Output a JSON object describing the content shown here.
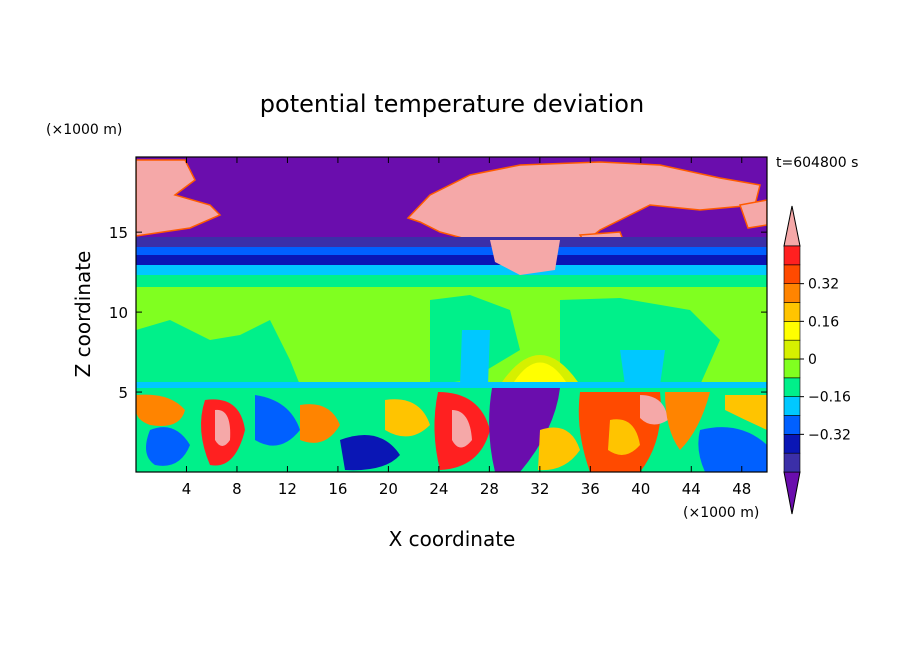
{
  "chart_data": {
    "type": "heatmap",
    "title": "potential temperature deviation",
    "time_label": "t=604800 s",
    "xlabel": "X coordinate",
    "ylabel": "Z coordinate",
    "x_unit": "(×1000 m)",
    "y_unit": "(×1000 m)",
    "xlim": [
      0,
      50
    ],
    "ylim": [
      0,
      19.7
    ],
    "x_ticks": [
      "4",
      "8",
      "12",
      "16",
      "20",
      "24",
      "28",
      "32",
      "36",
      "40",
      "44",
      "48"
    ],
    "y_ticks": [
      "5",
      "10",
      "15"
    ],
    "colorbar": {
      "levels": [
        -0.48,
        -0.4,
        -0.32,
        -0.24,
        -0.16,
        -0.08,
        0,
        0.08,
        0.16,
        0.24,
        0.32,
        0.4,
        0.48
      ],
      "tick_labels": [
        "0.32",
        "0.16",
        "0",
        "−0.16",
        "−0.32"
      ],
      "colors": [
        "#6a0dad",
        "#3b2fa8",
        "#0a16b5",
        "#0060ff",
        "#00c8ff",
        "#00f08a",
        "#80ff20",
        "#d6f000",
        "#ffff00",
        "#ffc400",
        "#ff8400",
        "#ff4a00",
        "#ff2020",
        "#f5a8a8"
      ],
      "extend": "both"
    },
    "regions": [
      {
        "z": [
          15.0,
          19.7
        ],
        "value": "below -0.48",
        "note": "upper layer, with pink (> 0.48) patches"
      },
      {
        "z": [
          13.5,
          15.0
        ],
        "value": "-0.40 to -0.16",
        "note": "blue bands near the tropopause"
      },
      {
        "z": [
          5.5,
          13.0
        ],
        "value": "-0.08 to 0.08",
        "note": "mid-level green"
      },
      {
        "z": [
          0,
          5.3
        ],
        "value": "-0.48 to 0.48",
        "note": "turbulent boundary layer"
      }
    ]
  }
}
